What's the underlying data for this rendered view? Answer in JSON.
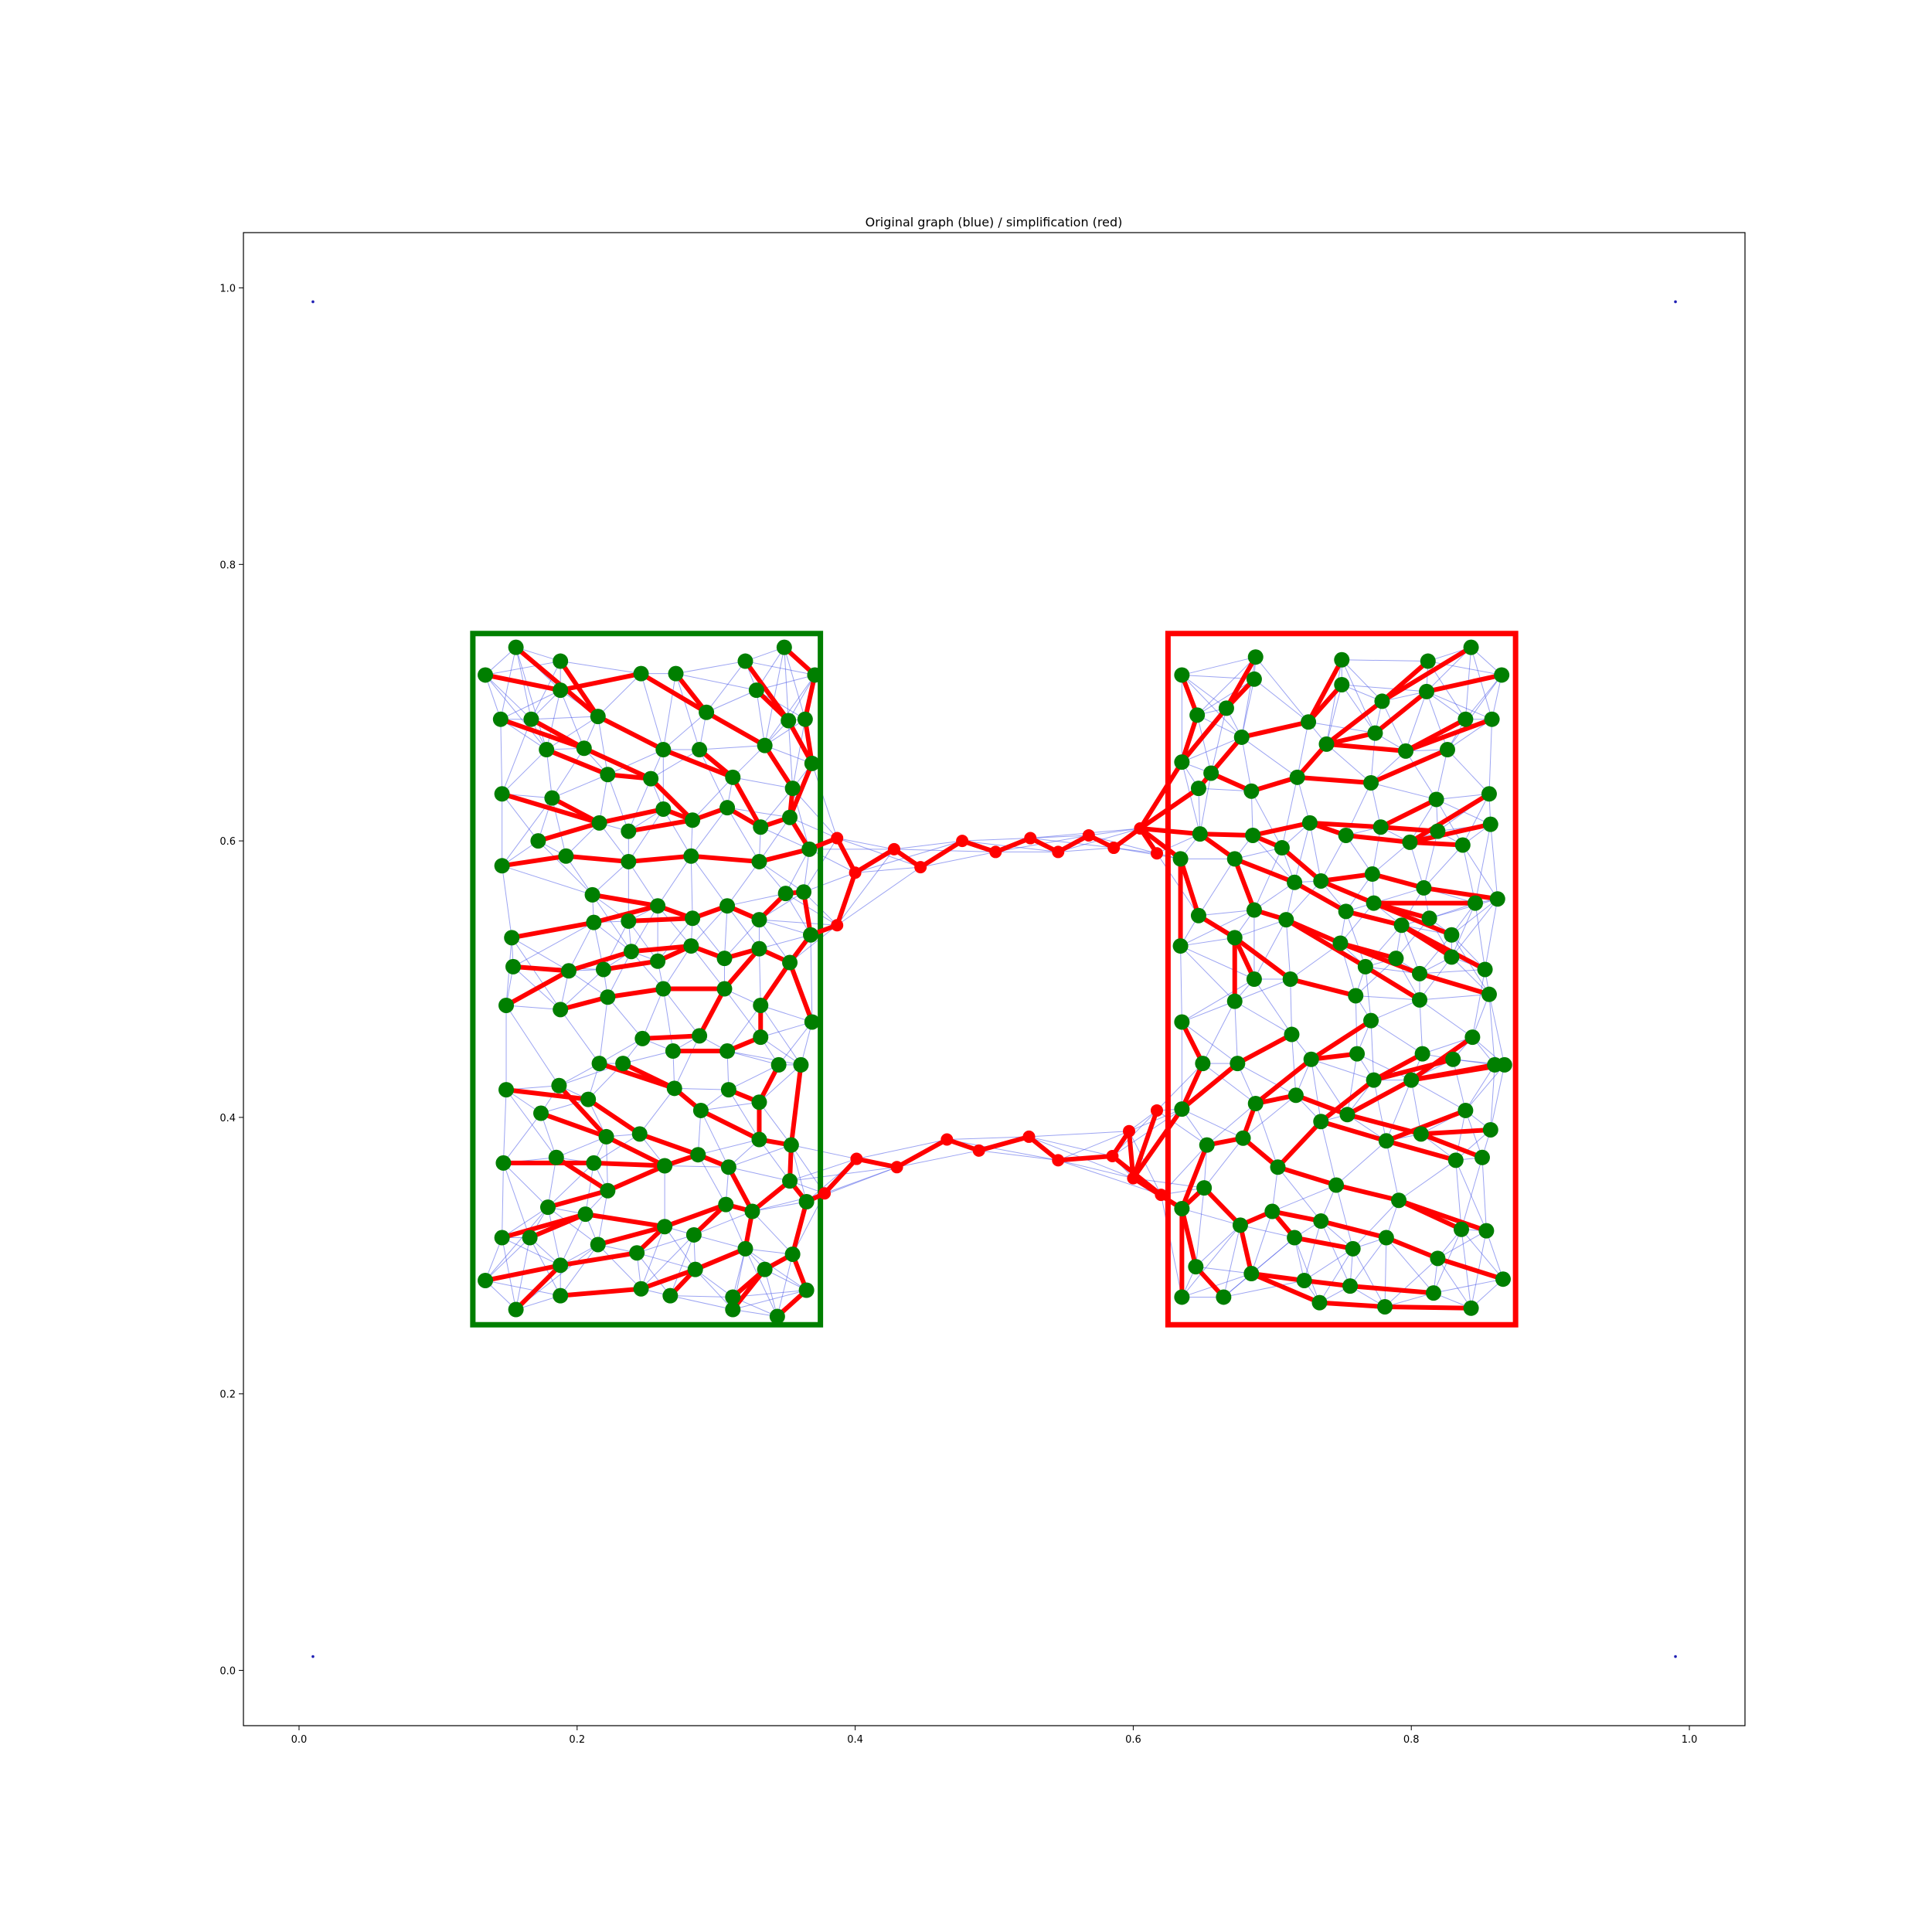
{
  "chart_data": {
    "type": "scatter",
    "title": "Original graph (blue) / simplification (red)",
    "xlabel": "",
    "ylabel": "",
    "xlim": [
      -0.04,
      1.04
    ],
    "ylim": [
      -0.04,
      1.04
    ],
    "xticks": [
      0.0,
      0.2,
      0.4,
      0.6,
      0.8,
      1.0
    ],
    "xtick_labels": [
      "0.0",
      "0.2",
      "0.4",
      "0.6",
      "0.8",
      "1.0"
    ],
    "yticks": [
      0.0,
      0.2,
      0.4,
      0.6,
      0.8,
      1.0
    ],
    "ytick_labels": [
      "0.0",
      "0.2",
      "0.4",
      "0.6",
      "0.8",
      "1.0"
    ],
    "grid": false,
    "colors": {
      "original_edges": "#4a5ae8",
      "simplified_edges": "#ff0000",
      "green_nodes": "#007f00",
      "red_nodes": "#ff0000",
      "left_region": "#007f00",
      "right_region": "#ff0000"
    },
    "regions": [
      {
        "color": "#007f00",
        "x": [
          0.125,
          0.375
        ],
        "y": [
          0.25,
          0.75
        ]
      },
      {
        "color": "#ff0000",
        "x": [
          0.625,
          0.875
        ],
        "y": [
          0.25,
          0.75
        ]
      }
    ],
    "corner_points": [
      [
        0.01,
        0.99
      ],
      [
        0.99,
        0.99
      ],
      [
        0.01,
        0.01
      ],
      [
        0.99,
        0.01
      ]
    ],
    "bridge_nodes": [
      [
        0.387,
        0.602
      ],
      [
        0.4,
        0.577
      ],
      [
        0.428,
        0.594
      ],
      [
        0.447,
        0.581
      ],
      [
        0.477,
        0.6
      ],
      [
        0.501,
        0.592
      ],
      [
        0.526,
        0.602
      ],
      [
        0.546,
        0.592
      ],
      [
        0.568,
        0.604
      ],
      [
        0.586,
        0.595
      ],
      [
        0.605,
        0.609
      ],
      [
        0.617,
        0.591
      ],
      [
        0.387,
        0.539
      ],
      [
        0.401,
        0.37
      ],
      [
        0.43,
        0.364
      ],
      [
        0.466,
        0.384
      ],
      [
        0.489,
        0.376
      ],
      [
        0.525,
        0.386
      ],
      [
        0.546,
        0.369
      ],
      [
        0.585,
        0.372
      ],
      [
        0.597,
        0.39
      ],
      [
        0.6,
        0.356
      ],
      [
        0.617,
        0.405
      ],
      [
        0.62,
        0.344
      ],
      [
        0.378,
        0.345
      ]
    ],
    "left_nodes": [
      [
        0.134,
        0.72
      ],
      [
        0.156,
        0.74
      ],
      [
        0.188,
        0.73
      ],
      [
        0.246,
        0.721
      ],
      [
        0.271,
        0.721
      ],
      [
        0.321,
        0.73
      ],
      [
        0.349,
        0.74
      ],
      [
        0.371,
        0.72
      ],
      [
        0.145,
        0.688
      ],
      [
        0.167,
        0.688
      ],
      [
        0.188,
        0.709
      ],
      [
        0.215,
        0.69
      ],
      [
        0.293,
        0.693
      ],
      [
        0.329,
        0.709
      ],
      [
        0.352,
        0.687
      ],
      [
        0.364,
        0.688
      ],
      [
        0.178,
        0.666
      ],
      [
        0.205,
        0.667
      ],
      [
        0.262,
        0.666
      ],
      [
        0.288,
        0.666
      ],
      [
        0.335,
        0.669
      ],
      [
        0.369,
        0.656
      ],
      [
        0.146,
        0.634
      ],
      [
        0.182,
        0.631
      ],
      [
        0.222,
        0.648
      ],
      [
        0.253,
        0.645
      ],
      [
        0.312,
        0.646
      ],
      [
        0.355,
        0.638
      ],
      [
        0.146,
        0.582
      ],
      [
        0.172,
        0.6
      ],
      [
        0.192,
        0.589
      ],
      [
        0.216,
        0.613
      ],
      [
        0.237,
        0.607
      ],
      [
        0.262,
        0.623
      ],
      [
        0.283,
        0.615
      ],
      [
        0.308,
        0.624
      ],
      [
        0.332,
        0.61
      ],
      [
        0.353,
        0.617
      ],
      [
        0.237,
        0.585
      ],
      [
        0.282,
        0.589
      ],
      [
        0.331,
        0.585
      ],
      [
        0.367,
        0.594
      ],
      [
        0.211,
        0.561
      ],
      [
        0.35,
        0.562
      ],
      [
        0.363,
        0.563
      ],
      [
        0.153,
        0.53
      ],
      [
        0.212,
        0.541
      ],
      [
        0.237,
        0.542
      ],
      [
        0.258,
        0.553
      ],
      [
        0.283,
        0.544
      ],
      [
        0.308,
        0.553
      ],
      [
        0.331,
        0.543
      ],
      [
        0.368,
        0.532
      ],
      [
        0.154,
        0.509
      ],
      [
        0.194,
        0.506
      ],
      [
        0.219,
        0.507
      ],
      [
        0.239,
        0.52
      ],
      [
        0.258,
        0.513
      ],
      [
        0.282,
        0.524
      ],
      [
        0.306,
        0.515
      ],
      [
        0.331,
        0.522
      ],
      [
        0.353,
        0.512
      ],
      [
        0.149,
        0.481
      ],
      [
        0.188,
        0.478
      ],
      [
        0.222,
        0.487
      ],
      [
        0.262,
        0.493
      ],
      [
        0.306,
        0.493
      ],
      [
        0.332,
        0.481
      ],
      [
        0.369,
        0.469
      ],
      [
        0.247,
        0.457
      ],
      [
        0.288,
        0.459
      ],
      [
        0.332,
        0.458
      ],
      [
        0.216,
        0.439
      ],
      [
        0.233,
        0.439
      ],
      [
        0.269,
        0.448
      ],
      [
        0.308,
        0.448
      ],
      [
        0.345,
        0.438
      ],
      [
        0.361,
        0.438
      ],
      [
        0.149,
        0.42
      ],
      [
        0.174,
        0.403
      ],
      [
        0.187,
        0.423
      ],
      [
        0.208,
        0.413
      ],
      [
        0.27,
        0.421
      ],
      [
        0.309,
        0.42
      ],
      [
        0.331,
        0.411
      ],
      [
        0.221,
        0.386
      ],
      [
        0.245,
        0.388
      ],
      [
        0.289,
        0.405
      ],
      [
        0.331,
        0.384
      ],
      [
        0.354,
        0.38
      ],
      [
        0.147,
        0.367
      ],
      [
        0.185,
        0.371
      ],
      [
        0.212,
        0.367
      ],
      [
        0.263,
        0.365
      ],
      [
        0.287,
        0.373
      ],
      [
        0.309,
        0.364
      ],
      [
        0.222,
        0.347
      ],
      [
        0.353,
        0.354
      ],
      [
        0.179,
        0.335
      ],
      [
        0.206,
        0.33
      ],
      [
        0.307,
        0.337
      ],
      [
        0.326,
        0.332
      ],
      [
        0.365,
        0.339
      ],
      [
        0.146,
        0.313
      ],
      [
        0.166,
        0.313
      ],
      [
        0.215,
        0.308
      ],
      [
        0.243,
        0.302
      ],
      [
        0.263,
        0.321
      ],
      [
        0.284,
        0.315
      ],
      [
        0.321,
        0.305
      ],
      [
        0.188,
        0.293
      ],
      [
        0.285,
        0.29
      ],
      [
        0.335,
        0.29
      ],
      [
        0.355,
        0.301
      ],
      [
        0.134,
        0.282
      ],
      [
        0.156,
        0.261
      ],
      [
        0.188,
        0.271
      ],
      [
        0.246,
        0.276
      ],
      [
        0.267,
        0.271
      ],
      [
        0.312,
        0.27
      ],
      [
        0.312,
        0.261
      ],
      [
        0.344,
        0.256
      ],
      [
        0.365,
        0.275
      ]
    ],
    "right_nodes": [
      [
        0.635,
        0.72
      ],
      [
        0.688,
        0.733
      ],
      [
        0.75,
        0.731
      ],
      [
        0.812,
        0.73
      ],
      [
        0.843,
        0.74
      ],
      [
        0.865,
        0.72
      ],
      [
        0.646,
        0.691
      ],
      [
        0.667,
        0.696
      ],
      [
        0.687,
        0.717
      ],
      [
        0.726,
        0.686
      ],
      [
        0.75,
        0.713
      ],
      [
        0.779,
        0.701
      ],
      [
        0.811,
        0.708
      ],
      [
        0.839,
        0.688
      ],
      [
        0.858,
        0.688
      ],
      [
        0.635,
        0.657
      ],
      [
        0.656,
        0.649
      ],
      [
        0.678,
        0.675
      ],
      [
        0.718,
        0.646
      ],
      [
        0.739,
        0.67
      ],
      [
        0.774,
        0.678
      ],
      [
        0.796,
        0.665
      ],
      [
        0.826,
        0.666
      ],
      [
        0.647,
        0.638
      ],
      [
        0.685,
        0.636
      ],
      [
        0.771,
        0.642
      ],
      [
        0.818,
        0.63
      ],
      [
        0.856,
        0.634
      ],
      [
        0.648,
        0.605
      ],
      [
        0.686,
        0.604
      ],
      [
        0.707,
        0.595
      ],
      [
        0.727,
        0.613
      ],
      [
        0.753,
        0.604
      ],
      [
        0.778,
        0.61
      ],
      [
        0.799,
        0.599
      ],
      [
        0.819,
        0.607
      ],
      [
        0.837,
        0.597
      ],
      [
        0.857,
        0.612
      ],
      [
        0.634,
        0.587
      ],
      [
        0.673,
        0.587
      ],
      [
        0.716,
        0.57
      ],
      [
        0.735,
        0.571
      ],
      [
        0.772,
        0.576
      ],
      [
        0.809,
        0.566
      ],
      [
        0.846,
        0.555
      ],
      [
        0.862,
        0.558
      ],
      [
        0.647,
        0.546
      ],
      [
        0.687,
        0.55
      ],
      [
        0.71,
        0.543
      ],
      [
        0.753,
        0.549
      ],
      [
        0.773,
        0.555
      ],
      [
        0.793,
        0.539
      ],
      [
        0.813,
        0.544
      ],
      [
        0.829,
        0.532
      ],
      [
        0.634,
        0.524
      ],
      [
        0.673,
        0.53
      ],
      [
        0.749,
        0.526
      ],
      [
        0.767,
        0.509
      ],
      [
        0.789,
        0.515
      ],
      [
        0.806,
        0.504
      ],
      [
        0.829,
        0.516
      ],
      [
        0.853,
        0.507
      ],
      [
        0.687,
        0.5
      ],
      [
        0.713,
        0.5
      ],
      [
        0.76,
        0.488
      ],
      [
        0.806,
        0.485
      ],
      [
        0.856,
        0.489
      ],
      [
        0.635,
        0.469
      ],
      [
        0.673,
        0.484
      ],
      [
        0.714,
        0.46
      ],
      [
        0.771,
        0.47
      ],
      [
        0.65,
        0.439
      ],
      [
        0.675,
        0.439
      ],
      [
        0.728,
        0.442
      ],
      [
        0.761,
        0.446
      ],
      [
        0.808,
        0.446
      ],
      [
        0.83,
        0.442
      ],
      [
        0.844,
        0.458
      ],
      [
        0.86,
        0.438
      ],
      [
        0.867,
        0.438
      ],
      [
        0.635,
        0.406
      ],
      [
        0.688,
        0.41
      ],
      [
        0.717,
        0.416
      ],
      [
        0.754,
        0.402
      ],
      [
        0.773,
        0.427
      ],
      [
        0.8,
        0.427
      ],
      [
        0.839,
        0.405
      ],
      [
        0.653,
        0.38
      ],
      [
        0.679,
        0.385
      ],
      [
        0.704,
        0.364
      ],
      [
        0.735,
        0.397
      ],
      [
        0.782,
        0.383
      ],
      [
        0.807,
        0.388
      ],
      [
        0.832,
        0.369
      ],
      [
        0.851,
        0.371
      ],
      [
        0.857,
        0.391
      ],
      [
        0.635,
        0.334
      ],
      [
        0.651,
        0.349
      ],
      [
        0.677,
        0.322
      ],
      [
        0.7,
        0.332
      ],
      [
        0.735,
        0.325
      ],
      [
        0.746,
        0.351
      ],
      [
        0.758,
        0.305
      ],
      [
        0.782,
        0.313
      ],
      [
        0.791,
        0.34
      ],
      [
        0.819,
        0.298
      ],
      [
        0.836,
        0.319
      ],
      [
        0.854,
        0.318
      ],
      [
        0.866,
        0.283
      ],
      [
        0.645,
        0.292
      ],
      [
        0.685,
        0.287
      ],
      [
        0.716,
        0.313
      ],
      [
        0.723,
        0.282
      ],
      [
        0.734,
        0.266
      ],
      [
        0.756,
        0.278
      ],
      [
        0.781,
        0.263
      ],
      [
        0.816,
        0.273
      ],
      [
        0.843,
        0.262
      ],
      [
        0.635,
        0.27
      ],
      [
        0.665,
        0.27
      ]
    ],
    "left_sinks": {
      "upper": [
        0.387,
        0.602
      ],
      "middle": [
        0.387,
        0.539
      ],
      "lower": [
        0.378,
        0.345
      ]
    },
    "right_sinks": {
      "upper": [
        0.605,
        0.609
      ],
      "lower": [
        0.6,
        0.356
      ]
    }
  }
}
